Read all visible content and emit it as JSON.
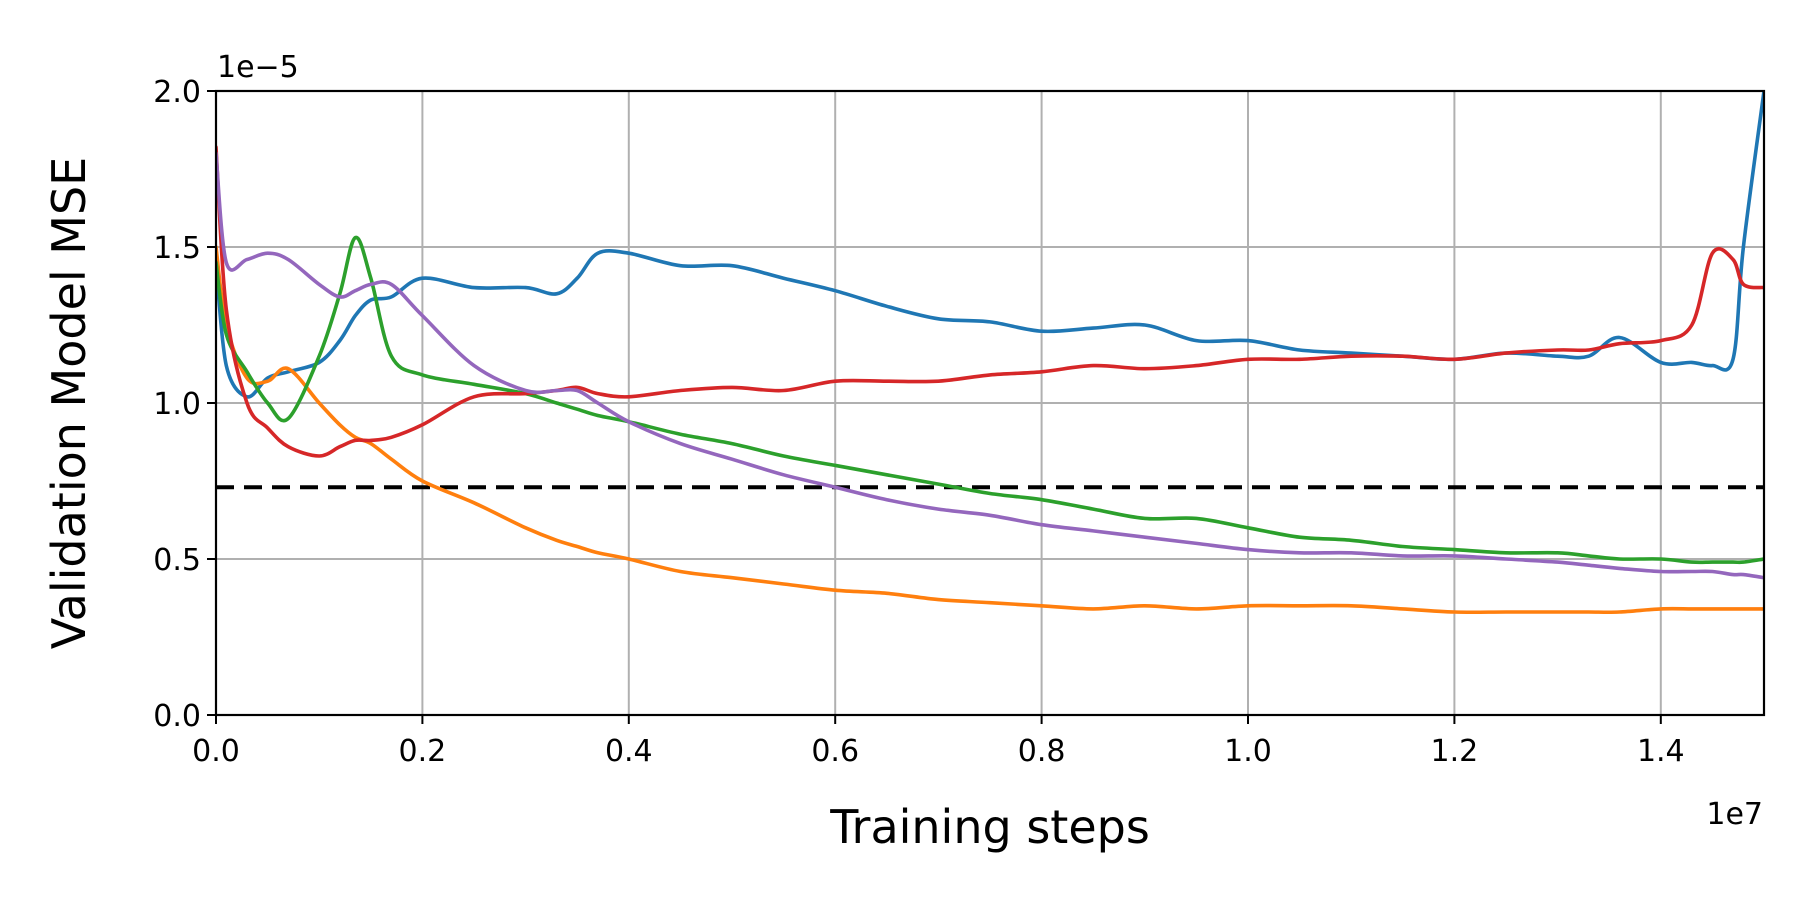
{
  "chart_data": {
    "type": "line",
    "title": "",
    "xlabel": "Training steps",
    "ylabel": "Validation Model MSE",
    "x_offset_label": "1e7",
    "y_offset_label": "1e−5",
    "xlim": [
      0,
      15000000
    ],
    "ylim": [
      0,
      2e-05
    ],
    "x_ticks": [
      0,
      2000000,
      4000000,
      6000000,
      8000000,
      10000000,
      12000000,
      14000000
    ],
    "x_tick_labels": [
      "0.0",
      "0.2",
      "0.4",
      "0.6",
      "0.8",
      "1.0",
      "1.2",
      "1.4"
    ],
    "y_ticks": [
      0,
      5e-06,
      1e-05,
      1.5e-05,
      2e-05
    ],
    "y_tick_labels": [
      "0.0",
      "0.5",
      "1.0",
      "1.5",
      "2.0"
    ],
    "grid": true,
    "legend": "none",
    "reference_line": {
      "y": 7.3e-06,
      "style": "dashed",
      "color": "#000000"
    },
    "x": [
      0,
      100000,
      300000,
      500000,
      700000,
      1000000,
      1200000,
      1350000,
      1500000,
      1700000,
      2000000,
      2500000,
      3000000,
      3300000,
      3500000,
      3700000,
      4000000,
      4500000,
      5000000,
      5500000,
      6000000,
      6500000,
      7000000,
      7500000,
      8000000,
      8500000,
      9000000,
      9500000,
      10000000,
      10500000,
      11000000,
      11500000,
      12000000,
      12500000,
      13000000,
      13300000,
      13600000,
      14000000,
      14300000,
      14500000,
      14700000,
      14800000,
      15000000
    ],
    "series": [
      {
        "color": "#1f77b4",
        "values": [
          1.45e-05,
          1.12e-05,
          1.02e-05,
          1.08e-05,
          1.1e-05,
          1.13e-05,
          1.2e-05,
          1.28e-05,
          1.33e-05,
          1.34e-05,
          1.4e-05,
          1.37e-05,
          1.37e-05,
          1.35e-05,
          1.4e-05,
          1.48e-05,
          1.48e-05,
          1.44e-05,
          1.44e-05,
          1.4e-05,
          1.36e-05,
          1.31e-05,
          1.27e-05,
          1.26e-05,
          1.23e-05,
          1.24e-05,
          1.25e-05,
          1.2e-05,
          1.2e-05,
          1.17e-05,
          1.16e-05,
          1.15e-05,
          1.14e-05,
          1.16e-05,
          1.15e-05,
          1.15e-05,
          1.21e-05,
          1.13e-05,
          1.13e-05,
          1.12e-05,
          1.14e-05,
          1.5e-05,
          2e-05
        ]
      },
      {
        "color": "#ff7f0e",
        "values": [
          1.5e-05,
          1.25e-05,
          1.08e-05,
          1.07e-05,
          1.11e-05,
          1e-05,
          9.3e-06,
          8.9e-06,
          8.7e-06,
          8.2e-06,
          7.5e-06,
          6.8e-06,
          6e-06,
          5.6e-06,
          5.4e-06,
          5.2e-06,
          5e-06,
          4.6e-06,
          4.4e-06,
          4.2e-06,
          4e-06,
          3.9e-06,
          3.7e-06,
          3.6e-06,
          3.5e-06,
          3.4e-06,
          3.5e-06,
          3.4e-06,
          3.5e-06,
          3.5e-06,
          3.5e-06,
          3.4e-06,
          3.3e-06,
          3.3e-06,
          3.3e-06,
          3.3e-06,
          3.3e-06,
          3.4e-06,
          3.4e-06,
          3.4e-06,
          3.4e-06,
          3.4e-06,
          3.4e-06
        ]
      },
      {
        "color": "#2ca02c",
        "values": [
          1.45e-05,
          1.22e-05,
          1.1e-05,
          1e-05,
          9.5e-06,
          1.15e-05,
          1.35e-05,
          1.53e-05,
          1.4e-05,
          1.15e-05,
          1.09e-05,
          1.06e-05,
          1.03e-05,
          1e-05,
          9.8e-06,
          9.6e-06,
          9.4e-06,
          9e-06,
          8.7e-06,
          8.3e-06,
          8e-06,
          7.7e-06,
          7.4e-06,
          7.1e-06,
          6.9e-06,
          6.6e-06,
          6.3e-06,
          6.3e-06,
          6e-06,
          5.7e-06,
          5.6e-06,
          5.4e-06,
          5.3e-06,
          5.2e-06,
          5.2e-06,
          5.1e-06,
          5e-06,
          5e-06,
          4.9e-06,
          4.9e-06,
          4.9e-06,
          4.9e-06,
          5e-06
        ]
      },
      {
        "color": "#d62728",
        "values": [
          1.82e-05,
          1.3e-05,
          1e-05,
          9.2e-06,
          8.6e-06,
          8.3e-06,
          8.6e-06,
          8.8e-06,
          8.8e-06,
          8.9e-06,
          9.3e-06,
          1.02e-05,
          1.03e-05,
          1.04e-05,
          1.05e-05,
          1.03e-05,
          1.02e-05,
          1.04e-05,
          1.05e-05,
          1.04e-05,
          1.07e-05,
          1.07e-05,
          1.07e-05,
          1.09e-05,
          1.1e-05,
          1.12e-05,
          1.11e-05,
          1.12e-05,
          1.14e-05,
          1.14e-05,
          1.15e-05,
          1.15e-05,
          1.14e-05,
          1.16e-05,
          1.17e-05,
          1.17e-05,
          1.19e-05,
          1.2e-05,
          1.25e-05,
          1.48e-05,
          1.46e-05,
          1.38e-05,
          1.37e-05
        ]
      },
      {
        "color": "#9467bd",
        "values": [
          1.8e-05,
          1.45e-05,
          1.46e-05,
          1.48e-05,
          1.46e-05,
          1.38e-05,
          1.34e-05,
          1.36e-05,
          1.38e-05,
          1.38e-05,
          1.28e-05,
          1.12e-05,
          1.04e-05,
          1.04e-05,
          1.04e-05,
          1e-05,
          9.4e-06,
          8.7e-06,
          8.2e-06,
          7.7e-06,
          7.3e-06,
          6.9e-06,
          6.6e-06,
          6.4e-06,
          6.1e-06,
          5.9e-06,
          5.7e-06,
          5.5e-06,
          5.3e-06,
          5.2e-06,
          5.2e-06,
          5.1e-06,
          5.1e-06,
          5e-06,
          4.9e-06,
          4.8e-06,
          4.7e-06,
          4.6e-06,
          4.6e-06,
          4.6e-06,
          4.5e-06,
          4.5e-06,
          4.4e-06
        ]
      }
    ]
  }
}
